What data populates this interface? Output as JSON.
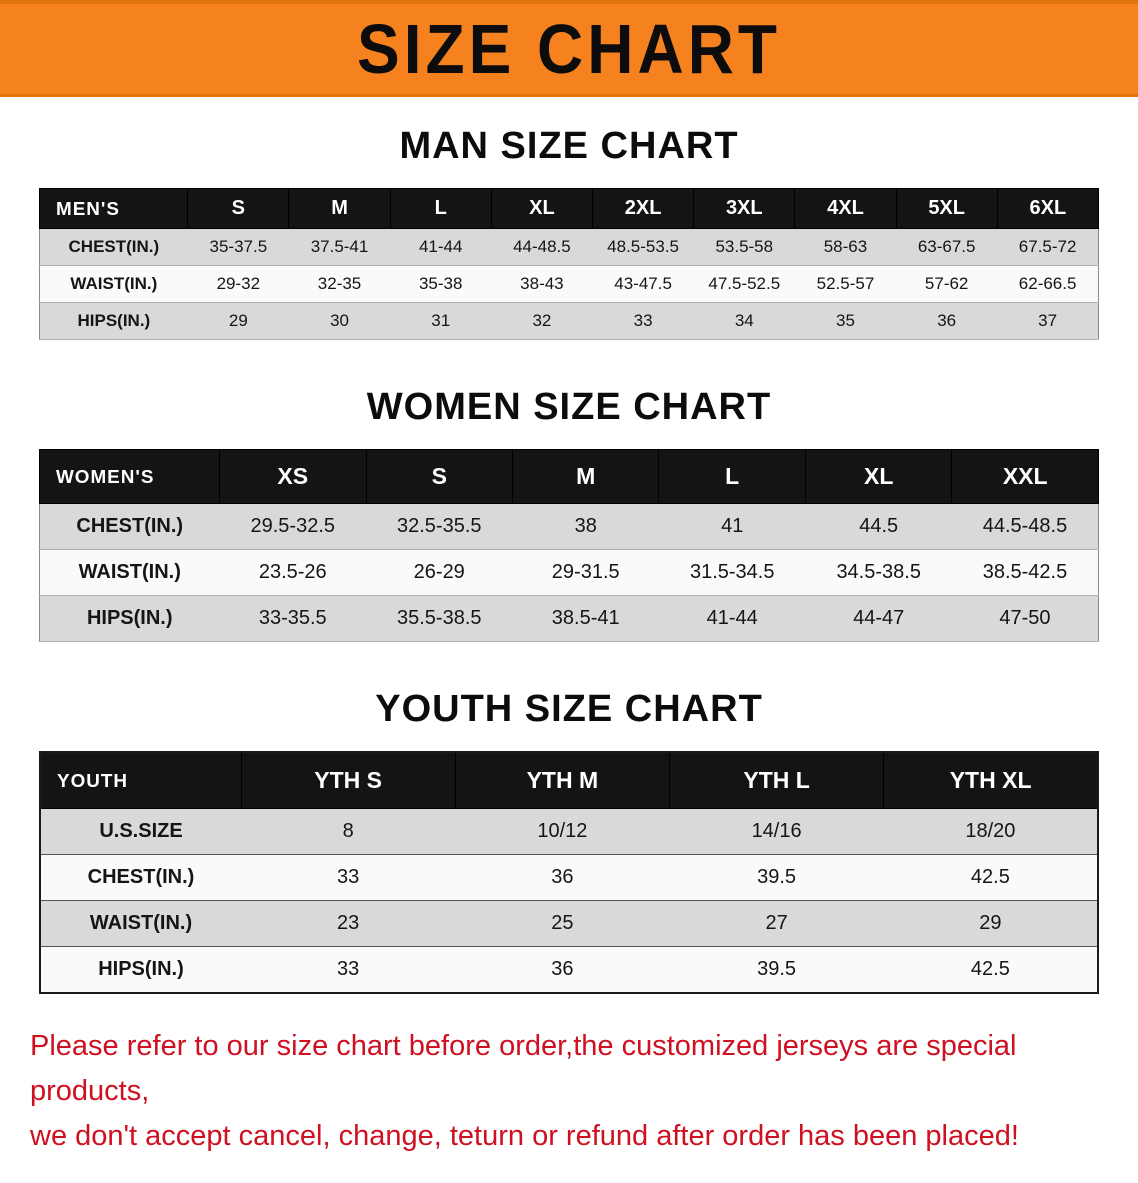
{
  "banner": {
    "title": "SIZE CHART"
  },
  "colors": {
    "banner_bg": "#f6821f",
    "header_bg": "#141414",
    "row_gray": "#d9d9d9",
    "disclaimer_red": "#cf1020"
  },
  "chart_data": [
    {
      "type": "table",
      "title": "MAN SIZE CHART",
      "columns": [
        "MEN'S",
        "S",
        "M",
        "L",
        "XL",
        "2XL",
        "3XL",
        "4XL",
        "5XL",
        "6XL"
      ],
      "rows": [
        [
          "CHEST(IN.)",
          "35-37.5",
          "37.5-41",
          "41-44",
          "44-48.5",
          "48.5-53.5",
          "53.5-58",
          "58-63",
          "63-67.5",
          "67.5-72"
        ],
        [
          "WAIST(IN.)",
          "29-32",
          "32-35",
          "35-38",
          "38-43",
          "43-47.5",
          "47.5-52.5",
          "52.5-57",
          "57-62",
          "62-66.5"
        ],
        [
          "HIPS(IN.)",
          "29",
          "30",
          "31",
          "32",
          "33",
          "34",
          "35",
          "36",
          "37"
        ]
      ]
    },
    {
      "type": "table",
      "title": "WOMEN SIZE CHART",
      "columns": [
        "WOMEN'S",
        "XS",
        "S",
        "M",
        "L",
        "XL",
        "XXL"
      ],
      "rows": [
        [
          "CHEST(IN.)",
          "29.5-32.5",
          "32.5-35.5",
          "38",
          "41",
          "44.5",
          "44.5-48.5"
        ],
        [
          "WAIST(IN.)",
          "23.5-26",
          "26-29",
          "29-31.5",
          "31.5-34.5",
          "34.5-38.5",
          "38.5-42.5"
        ],
        [
          "HIPS(IN.)",
          "33-35.5",
          "35.5-38.5",
          "38.5-41",
          "41-44",
          "44-47",
          "47-50"
        ]
      ]
    },
    {
      "type": "table",
      "title": "YOUTH SIZE CHART",
      "columns": [
        "YOUTH",
        "YTH S",
        "YTH M",
        "YTH L",
        "YTH XL"
      ],
      "rows": [
        [
          "U.S.SIZE",
          "8",
          "10/12",
          "14/16",
          "18/20"
        ],
        [
          "CHEST(IN.)",
          "33",
          "36",
          "39.5",
          "42.5"
        ],
        [
          "WAIST(IN.)",
          "23",
          "25",
          "27",
          "29"
        ],
        [
          "HIPS(IN.)",
          "33",
          "36",
          "39.5",
          "42.5"
        ]
      ]
    }
  ],
  "disclaimer": {
    "line1": "Please refer to our size chart before order,the customized jerseys are special products,",
    "line2": "we don't accept cancel, change, teturn or refund after order has been placed!"
  }
}
